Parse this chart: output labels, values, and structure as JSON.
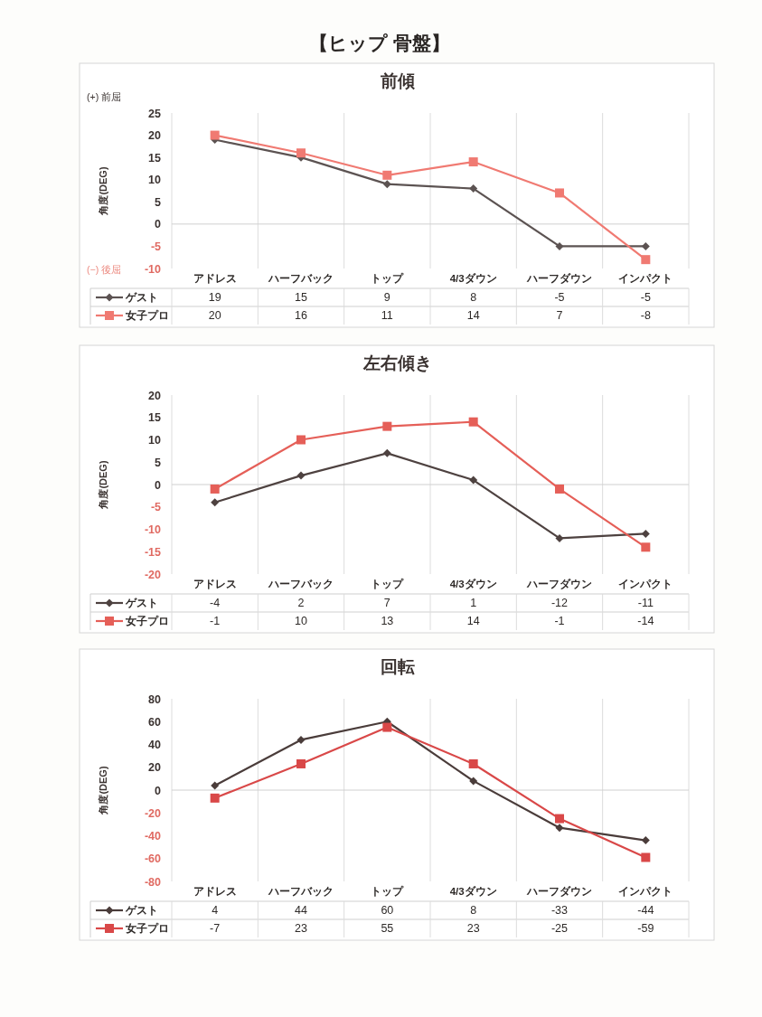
{
  "chart_data": [
    {
      "type": "line",
      "title": "【ヒップ 骨盤】",
      "subtitle": "前傾",
      "ylabel": "角度(DEG)",
      "annotations": [
        "(+) 前屈",
        "(−) 後屈"
      ],
      "categories": [
        "アドレス",
        "ハーフバック",
        "トップ",
        "4/3ダウン",
        "ハーフダウン",
        "インパクト"
      ],
      "series": [
        {
          "name": "ゲスト",
          "color": "#5c5352",
          "marker": "diamond",
          "values": [
            19,
            15,
            9,
            8,
            -5,
            -5
          ]
        },
        {
          "name": "女子プロ",
          "color": "#f07a72",
          "marker": "square",
          "values": [
            20,
            16,
            11,
            14,
            7,
            -8
          ]
        }
      ],
      "ylim": [
        -10,
        25
      ],
      "yticks": [
        -10,
        -5,
        0,
        5,
        10,
        15,
        20,
        25
      ],
      "grid": "x",
      "legend": "bottom",
      "data_labels": true
    },
    {
      "type": "line",
      "title": "左右傾き",
      "ylabel": "角度(DEG)",
      "categories": [
        "アドレス",
        "ハーフバック",
        "トップ",
        "4/3ダウン",
        "ハーフダウン",
        "インパクト"
      ],
      "series": [
        {
          "name": "ゲスト",
          "color": "#4e4240",
          "marker": "diamond",
          "values": [
            -4,
            2,
            7,
            1,
            -12,
            -11
          ]
        },
        {
          "name": "女子プロ",
          "color": "#e55f58",
          "marker": "square",
          "values": [
            -1,
            10,
            13,
            14,
            -1,
            -14
          ]
        }
      ],
      "ylim": [
        -20,
        20
      ],
      "yticks": [
        -20,
        -15,
        -10,
        -5,
        0,
        5,
        10,
        15,
        20
      ],
      "grid": "x",
      "legend": "bottom",
      "data_labels": true
    },
    {
      "type": "line",
      "title": "回転",
      "ylabel": "角度(DEG)",
      "categories": [
        "アドレス",
        "ハーフバック",
        "トップ",
        "4/3ダウン",
        "ハーフダウン",
        "インパクト"
      ],
      "series": [
        {
          "name": "ゲスト",
          "color": "#4a3c3a",
          "marker": "diamond",
          "values": [
            4,
            44,
            60,
            8,
            -33,
            -44
          ]
        },
        {
          "name": "女子プロ",
          "color": "#d94848",
          "marker": "square",
          "values": [
            -7,
            23,
            55,
            23,
            -25,
            -59
          ]
        }
      ],
      "ylim": [
        -80,
        80
      ],
      "yticks": [
        -80,
        -60,
        -40,
        -20,
        0,
        20,
        40,
        60,
        80
      ],
      "grid": "x",
      "legend": "bottom",
      "data_labels": true
    }
  ]
}
